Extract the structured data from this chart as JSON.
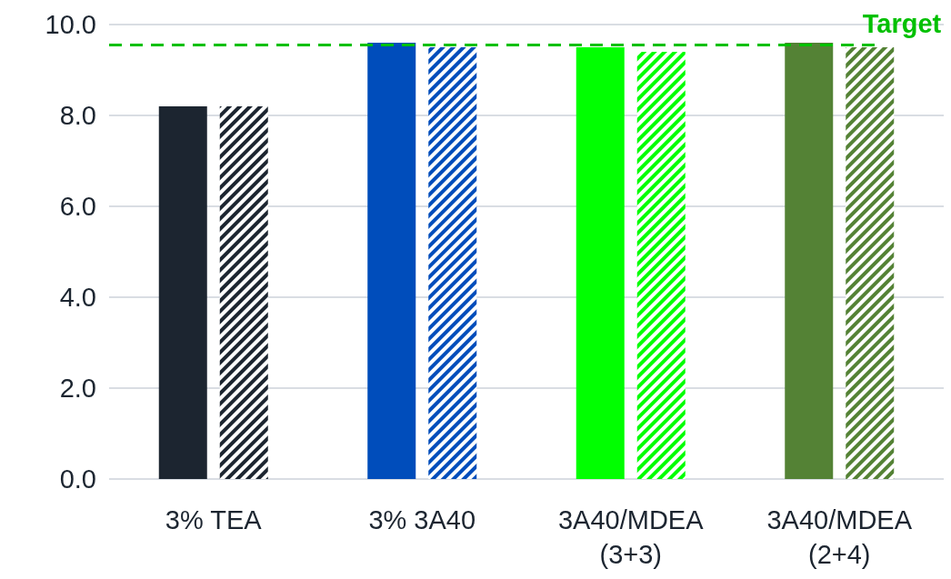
{
  "chart_data": {
    "type": "bar",
    "categories": [
      "3% TEA",
      "3% 3A40",
      "3A40/MDEA (3+3)",
      "3A40/MDEA (2+4)"
    ],
    "series": [
      {
        "colors": [
          "#1c2530",
          "#004dbb",
          "#00ff00",
          "#548235"
        ],
        "values": [
          8.2,
          9.6,
          9.5,
          9.6
        ]
      },
      {
        "colors": [
          "#1c2530",
          "#004dbb",
          "#00ff00",
          "#548235"
        ],
        "values": [
          8.2,
          9.5,
          9.4,
          9.5
        ]
      }
    ],
    "ylim": [
      0,
      10
    ],
    "yticks": [
      {
        "value": 0,
        "label": "0.0"
      },
      {
        "value": 2,
        "label": "2.0"
      },
      {
        "value": 4,
        "label": "4.0"
      },
      {
        "value": 6,
        "label": "6.0"
      },
      {
        "value": 8,
        "label": "8.0"
      },
      {
        "value": 10,
        "label": "10.0"
      }
    ],
    "grid": "y",
    "ref_lines": [
      {
        "axis": "y",
        "value": 9.55,
        "label": "Target",
        "color": "#00c000",
        "line_style": "dashed"
      }
    ]
  }
}
